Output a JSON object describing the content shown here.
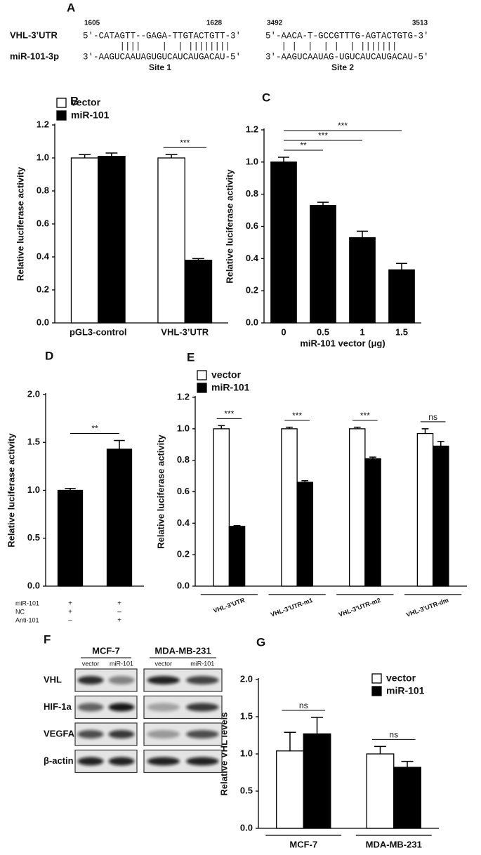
{
  "alignment": {
    "label": "A",
    "gene": "VHL-3’UTR",
    "mirna": "miR-101-3p",
    "sites": [
      {
        "start": "1605",
        "end": "1628",
        "target": "5′-CATAGTT--GAGA-TTGTACTGTT-3′",
        "pairs": "       ||||    |  | ||||||||",
        "mirna_seq": "3′-AAGUCAAUAGUGUCAUCAUGACAU-5′",
        "name": "Site 1"
      },
      {
        "start": "3492",
        "end": "3513",
        "target": "5′-AACA-T-GCCGTTTG-AGTACTGTG-3′",
        "pairs": "   | |  |  | |  | |||||||",
        "mirna_seq": "3′-AAGUCAAUAG-UGUCAUCAUGACAU-5′",
        "name": "Site 2"
      }
    ]
  },
  "chart_data": [
    {
      "type": "bar",
      "label": "B",
      "ylabel": "Relative luciferase activity",
      "categories": [
        "pGL3-control",
        "VHL-3’UTR"
      ],
      "series": [
        {
          "name": "vector",
          "color": "#ffffff",
          "values": [
            1.0,
            1.0
          ],
          "errors": [
            0.02,
            0.02
          ]
        },
        {
          "name": "miR-101",
          "color": "#000000",
          "values": [
            1.01,
            0.38
          ],
          "errors": [
            0.02,
            0.01
          ]
        }
      ],
      "significance": [
        null,
        "***"
      ],
      "ylim": [
        0,
        1.2
      ],
      "yticks": [
        {
          "value": 0,
          "label": "0.0"
        },
        0.2,
        0.4,
        0.6,
        0.8,
        {
          "value": 1,
          "label": "1.0"
        },
        1.2
      ],
      "legend": "upper left"
    },
    {
      "type": "bar",
      "label": "C",
      "ylabel": "Relative luciferase activity",
      "xlabel": "miR-101 vector (μg)",
      "categories": [
        "0",
        "0.5",
        "1",
        "1.5"
      ],
      "series": [
        {
          "name": null,
          "color": "#000000",
          "values": [
            1.0,
            0.73,
            0.53,
            0.33
          ],
          "errors": [
            0.03,
            0.02,
            0.04,
            0.04
          ]
        }
      ],
      "significance": [
        null,
        "**",
        "***",
        "***"
      ],
      "ylim": [
        0,
        1.2
      ],
      "yticks": [
        {
          "value": 0,
          "label": "0.0"
        },
        0.2,
        0.4,
        0.6,
        0.8,
        {
          "value": 1,
          "label": "1.0"
        },
        1.2
      ]
    },
    {
      "type": "bar",
      "label": "D",
      "ylabel": "Relative luciferase activity",
      "categories": [
        null,
        null
      ],
      "series": [
        {
          "name": null,
          "color": "#000000",
          "values": [
            1.0,
            1.43
          ],
          "errors": [
            0.02,
            0.09
          ]
        }
      ],
      "significance": [
        null,
        "**"
      ],
      "conditions": [
        {
          "name": "miR-101",
          "values": [
            "+",
            "+"
          ]
        },
        {
          "name": "NC",
          "values": [
            "+",
            "–"
          ]
        },
        {
          "name": "Anti-101",
          "values": [
            "–",
            "+"
          ]
        }
      ],
      "ylim": [
        0,
        2
      ],
      "yticks": [
        {
          "value": 0,
          "label": "0.0"
        },
        0.5,
        {
          "value": 1,
          "label": "1.0"
        },
        1.5,
        {
          "value": 2,
          "label": "2.0"
        }
      ]
    },
    {
      "type": "bar",
      "label": "E",
      "ylabel": "Relative luciferase activity",
      "categories": [
        "VHL-3’UTR",
        "VHL-3’UTR-m1",
        "VHL-3’UTR-m2",
        "VHL-3’UTR-dm"
      ],
      "series": [
        {
          "name": "vector",
          "color": "#ffffff",
          "values": [
            1.0,
            1.0,
            1.0,
            0.97
          ],
          "errors": [
            0.02,
            0.01,
            0.01,
            0.03
          ]
        },
        {
          "name": "miR-101",
          "color": "#000000",
          "values": [
            0.38,
            0.66,
            0.81,
            0.89
          ],
          "errors": [
            0.005,
            0.01,
            0.01,
            0.03
          ]
        }
      ],
      "significance": [
        "***",
        "***",
        "***",
        "ns"
      ],
      "ylim": [
        0,
        1.2
      ],
      "yticks": [
        {
          "value": 0,
          "label": "0.0"
        },
        0.2,
        0.4,
        0.6,
        0.8,
        {
          "value": 1,
          "label": "1.0"
        },
        1.2
      ],
      "legend": "upper left",
      "category_brackets": true,
      "rotate_labels": true
    },
    {
      "type": "bar",
      "label": "G",
      "ylabel": "Relative VHL levels",
      "categories": [
        "MCF-7",
        "MDA-MB-231"
      ],
      "series": [
        {
          "name": "vector",
          "color": "#ffffff",
          "values": [
            1.04,
            1.0
          ],
          "errors": [
            0.25,
            0.1
          ]
        },
        {
          "name": "miR-101",
          "color": "#000000",
          "values": [
            1.27,
            0.82
          ],
          "errors": [
            0.22,
            0.08
          ]
        }
      ],
      "significance": [
        "ns",
        "ns"
      ],
      "ylim": [
        0,
        2
      ],
      "yticks": [
        {
          "value": 0,
          "label": "0.0"
        },
        0.5,
        {
          "value": 1,
          "label": "1.0"
        },
        1.5,
        {
          "value": 2,
          "label": "2.0"
        }
      ],
      "legend": "upper right",
      "category_brackets": true
    }
  ],
  "blot": {
    "label": "F",
    "cell_lines": [
      "MCF-7",
      "MDA-MB-231"
    ],
    "lanes": [
      "vector",
      "miR-101"
    ],
    "proteins": [
      "VHL",
      "HIF-1a",
      "VEGFA",
      "β-actin"
    ]
  }
}
